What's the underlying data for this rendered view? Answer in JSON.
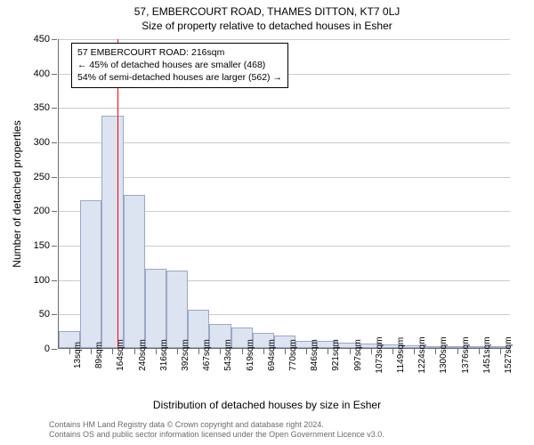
{
  "chart": {
    "type": "histogram",
    "title_main": "57, EMBERCOURT ROAD, THAMES DITTON, KT7 0LJ",
    "title_sub": "Size of property relative to detached houses in Esher",
    "title_fontsize": 12,
    "y_label": "Number of detached properties",
    "x_label": "Distribution of detached houses by size in Esher",
    "label_fontsize": 12,
    "background_color": "#ffffff",
    "grid_color": "#cccccc",
    "axis_color": "#6b6b6b",
    "bar_fill": "#dce3f1",
    "bar_border": "#9aa7c7",
    "reference_line_color": "#ff0000",
    "reference_value": 216,
    "ylim": [
      0,
      450
    ],
    "ytick_step": 50,
    "yticks": [
      0,
      50,
      100,
      150,
      200,
      250,
      300,
      350,
      400,
      450
    ],
    "xticks": [
      "13sqm",
      "89sqm",
      "164sqm",
      "240sqm",
      "316sqm",
      "392sqm",
      "467sqm",
      "543sqm",
      "619sqm",
      "694sqm",
      "770sqm",
      "846sqm",
      "921sqm",
      "997sqm",
      "1073sqm",
      "1149sqm",
      "1224sqm",
      "1300sqm",
      "1376sqm",
      "1451sqm",
      "1527sqm"
    ],
    "x_min": 13,
    "x_max": 1565,
    "bar_count": 21,
    "values": [
      25,
      215,
      338,
      222,
      115,
      112,
      55,
      35,
      30,
      22,
      18,
      10,
      10,
      8,
      6,
      5,
      4,
      3,
      2,
      2,
      1
    ],
    "annotation": {
      "line1": "57 EMBERCOURT ROAD: 216sqm",
      "line2": "← 45% of detached houses are smaller (468)",
      "line3": "54% of semi-detached houses are larger (562) →",
      "border_color": "#000000",
      "bg_color": "#ffffff",
      "fontsize": 10.5
    },
    "footer": {
      "line1": "Contains HM Land Registry data © Crown copyright and database right 2024.",
      "line2": "Contains OS and public sector information licensed under the Open Government Licence v3.0.",
      "color": "#6b6b6b",
      "fontsize": 9
    }
  }
}
